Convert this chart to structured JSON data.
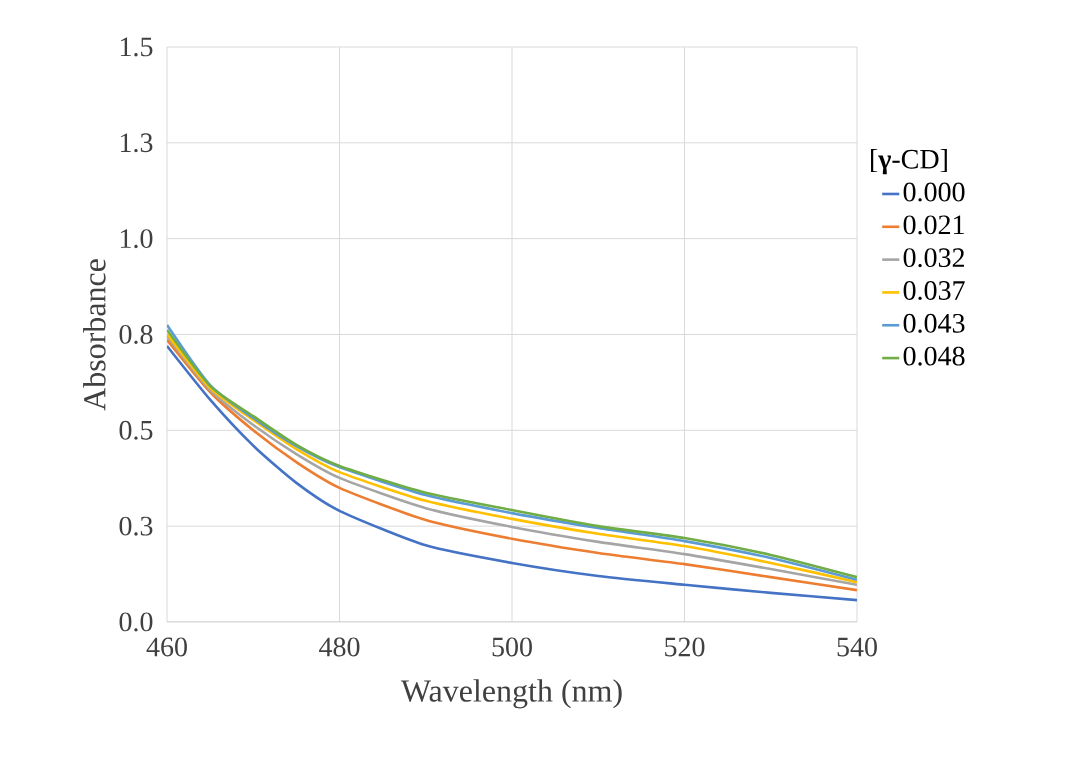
{
  "chart_data": {
    "type": "line",
    "xlabel": "Wavelength (nm)",
    "ylabel": "Absorbance",
    "legend_title": "[**γ**-CD]",
    "legend": "right",
    "grid": true,
    "marker": "none",
    "line_style": "solid",
    "x": [
      460,
      465,
      470,
      475,
      480,
      490,
      500,
      510,
      520,
      530,
      540
    ],
    "xlim": [
      460,
      540
    ],
    "xticks": [
      460,
      480,
      500,
      520,
      540
    ],
    "ylim": [
      0,
      1.5
    ],
    "yticks": [
      {
        "value": 0,
        "label": "0.0"
      },
      {
        "value": 0.25,
        "label": "0.3"
      },
      {
        "value": 0.5,
        "label": "0.5"
      },
      {
        "value": 0.75,
        "label": "0.8"
      },
      {
        "value": 1.0,
        "label": "1.0"
      },
      {
        "value": 1.25,
        "label": "1.3"
      },
      {
        "value": 1.5,
        "label": "1.5"
      }
    ],
    "series": [
      {
        "name": "0.000",
        "color": "#4472c4",
        "values": [
          0.72,
          0.58,
          0.46,
          0.363,
          0.29,
          0.2,
          0.154,
          0.12,
          0.097,
          0.076,
          0.057
        ]
      },
      {
        "name": "0.021",
        "color": "#ed7d31",
        "values": [
          0.736,
          0.6,
          0.5,
          0.417,
          0.35,
          0.266,
          0.217,
          0.18,
          0.151,
          0.117,
          0.083
        ]
      },
      {
        "name": "0.032",
        "color": "#a5a5a5",
        "values": [
          0.746,
          0.605,
          0.514,
          0.438,
          0.376,
          0.297,
          0.248,
          0.209,
          0.177,
          0.138,
          0.097
        ]
      },
      {
        "name": "0.037",
        "color": "#ffc000",
        "values": [
          0.751,
          0.61,
          0.527,
          0.451,
          0.391,
          0.316,
          0.269,
          0.23,
          0.198,
          0.154,
          0.104
        ]
      },
      {
        "name": "0.043",
        "color": "#5b9bd5",
        "values": [
          0.775,
          0.618,
          0.532,
          0.459,
          0.404,
          0.331,
          0.284,
          0.245,
          0.211,
          0.167,
          0.11
        ]
      },
      {
        "name": "0.048",
        "color": "#70ad47",
        "values": [
          0.762,
          0.616,
          0.537,
          0.462,
          0.407,
          0.337,
          0.292,
          0.25,
          0.219,
          0.175,
          0.117
        ]
      }
    ]
  }
}
